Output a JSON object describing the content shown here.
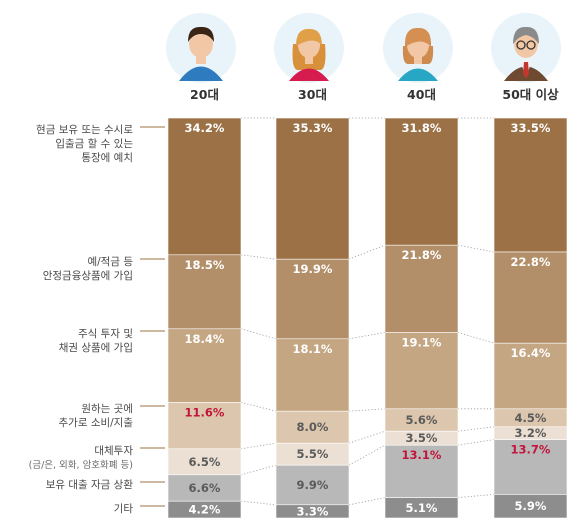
{
  "chart_data": {
    "type": "bar",
    "stacked": true,
    "normalized": true,
    "unit": "%",
    "categories": [
      "20대",
      "30대",
      "40대",
      "50대 이상"
    ],
    "series": [
      {
        "name": "현금 보유 또는 수시로 입출금 할 수 있는 통장에 예치",
        "values": [
          34.2,
          35.3,
          31.8,
          33.5
        ]
      },
      {
        "name": "예/적금 등 안정금융상품에 가입",
        "values": [
          18.5,
          19.9,
          21.8,
          22.8
        ]
      },
      {
        "name": "주식 투자 및 채권 상품에 가입",
        "values": [
          18.4,
          18.1,
          19.1,
          16.4
        ]
      },
      {
        "name": "원하는 곳에 추가로 소비/지출",
        "values": [
          11.6,
          8.0,
          5.6,
          4.5
        ]
      },
      {
        "name": "대체투자 (금/은, 외화, 암호화폐 등)",
        "values": [
          6.5,
          5.5,
          3.5,
          3.2
        ]
      },
      {
        "name": "보유 대출 자금 상환",
        "values": [
          6.6,
          9.9,
          13.1,
          13.7
        ]
      },
      {
        "name": "기타",
        "values": [
          4.2,
          3.3,
          5.1,
          5.9
        ]
      }
    ],
    "value_labels": [
      [
        "34.2%",
        "35.3%",
        "31.8%",
        "33.5%"
      ],
      [
        "18.5%",
        "19.9%",
        "21.8%",
        "22.8%"
      ],
      [
        "18.4%",
        "18.1%",
        "19.1%",
        "16.4%"
      ],
      [
        "11.6%",
        "8.0%",
        "5.6%",
        "4.5%"
      ],
      [
        "6.5%",
        "5.5%",
        "3.5%",
        "3.2%"
      ],
      [
        "6.6%",
        "9.9%",
        "13.1%",
        "13.7%"
      ],
      [
        "4.2%",
        "3.3%",
        "5.1%",
        "5.9%"
      ]
    ],
    "category_labels": [
      [
        "현금 보유 또는 수시로",
        "입출금 할 수 있는",
        "통장에 예치"
      ],
      [
        "예/적금 등",
        "안정금융상품에 가입"
      ],
      [
        "주식 투자 및",
        "채권 상품에 가입"
      ],
      [
        "원하는 곳에",
        "추가로 소비/지출"
      ],
      [
        "대체투자",
        "(금/은, 외화, 암호화폐 등)"
      ],
      [
        "보유 대출 자금 상환"
      ],
      [
        "기타"
      ]
    ],
    "highlighted": [
      [
        3,
        0
      ],
      [
        5,
        2
      ],
      [
        5,
        3
      ]
    ],
    "avatars": [
      "young-man-avatar",
      "young-woman-avatar",
      "middle-aged-woman-avatar",
      "older-man-avatar"
    ],
    "colors": {
      "segments": [
        "#9b7145",
        "#b28f69",
        "#c4a683",
        "#dcc7ae",
        "#ebe0d3",
        "#b9b8b8",
        "#8d8d8d"
      ],
      "value_light": "#ffffff",
      "value_dark": "#5a5a5a",
      "value_highlight": "#c0163b",
      "leader": "#9b7145",
      "connector": "#9a9a9a",
      "avatar_bg": "#e9f4fa"
    }
  }
}
